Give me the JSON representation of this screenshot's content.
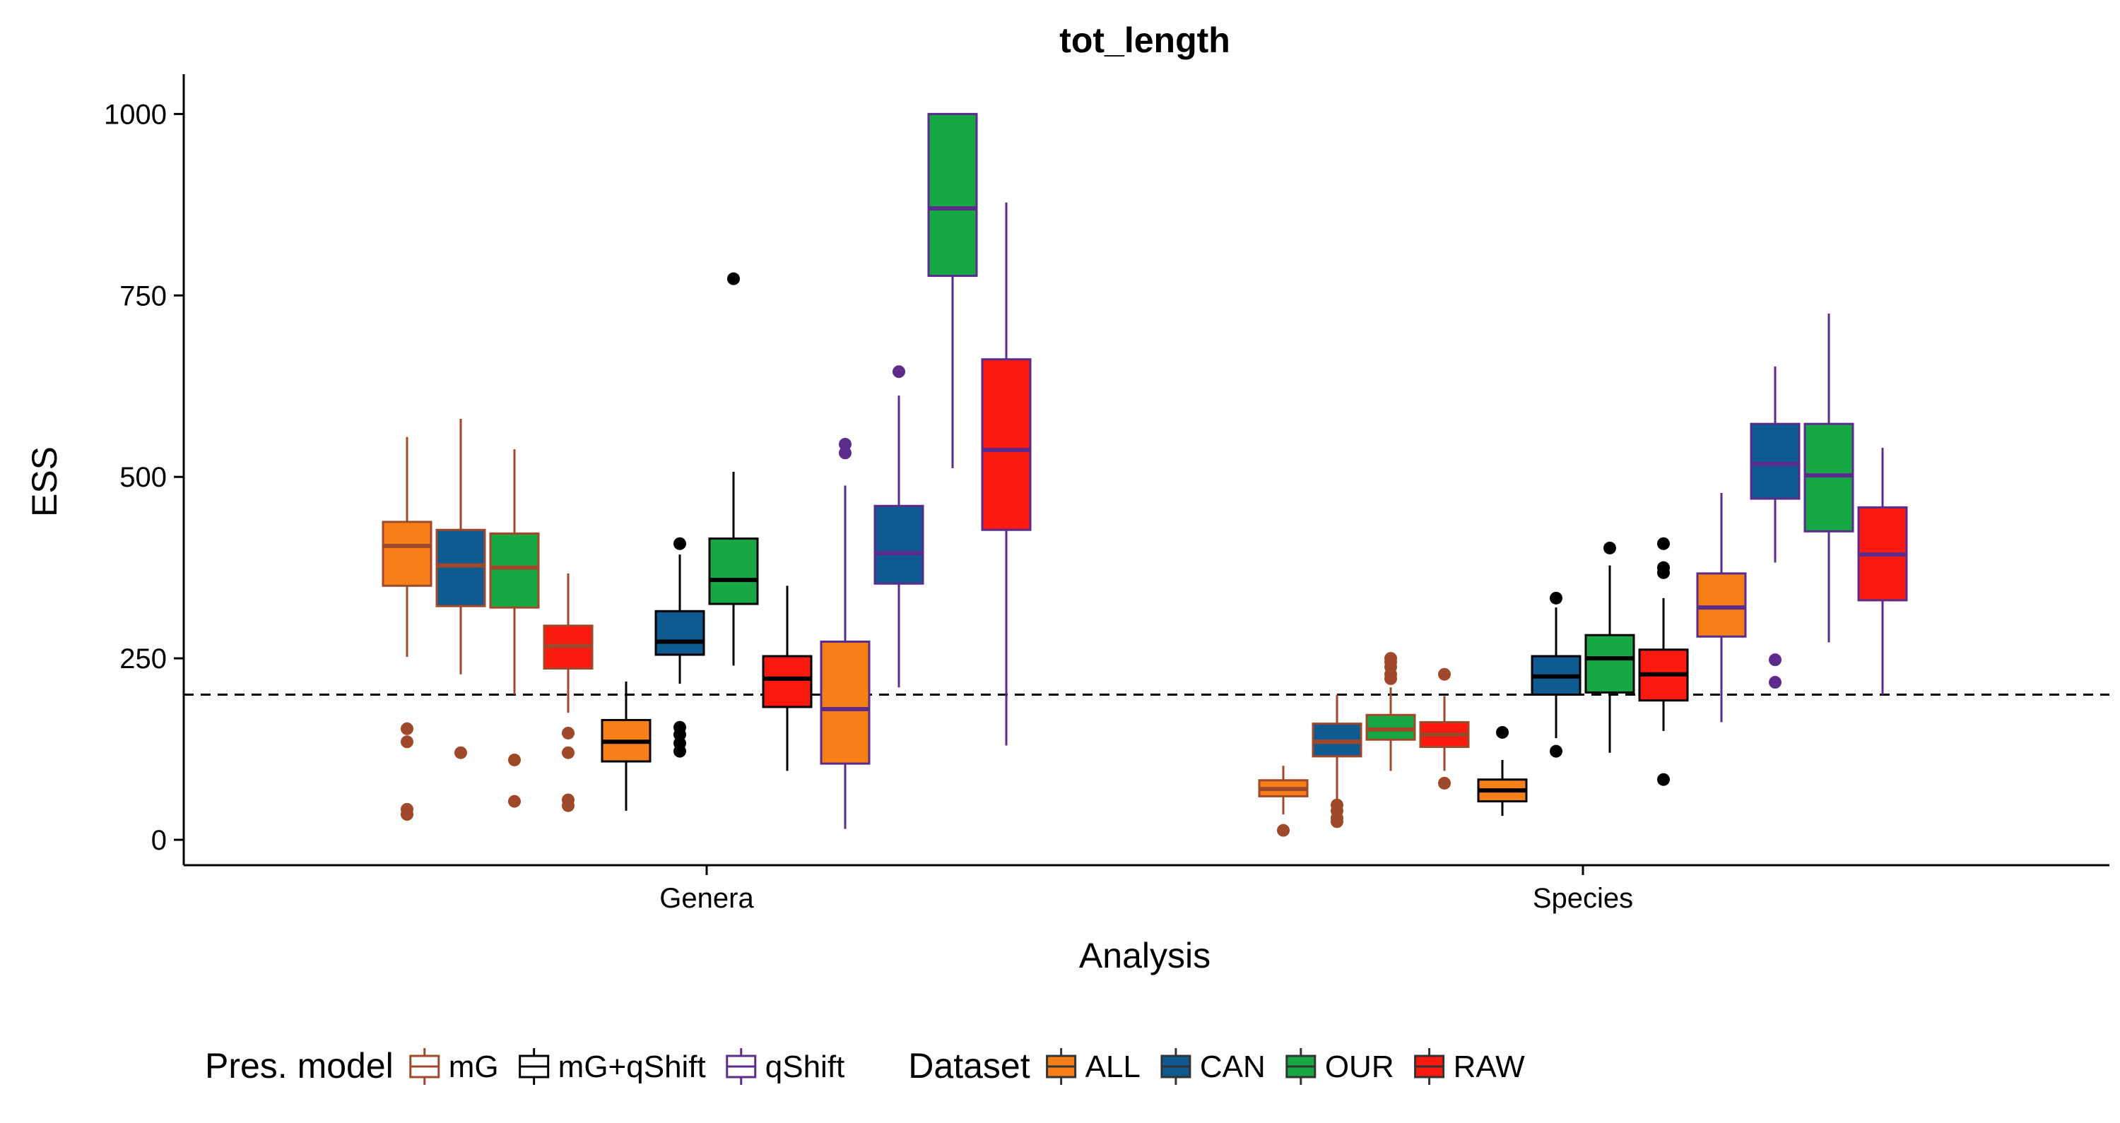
{
  "chart_data": {
    "type": "boxplot",
    "title": "tot_length",
    "xlabel": "Analysis",
    "ylabel": "ESS",
    "ylim": [
      -35,
      1050
    ],
    "yticks": [
      0,
      250,
      500,
      750,
      1000
    ],
    "categories": [
      "Genera",
      "Species"
    ],
    "reference_line": {
      "y": 200,
      "style": "dashed"
    },
    "grid": false,
    "legend_position": "bottom",
    "legends": [
      {
        "title": "Pres. model",
        "entries": [
          {
            "label": "mG",
            "color": "#A0492A"
          },
          {
            "label": "mG+qShift",
            "color": "#000000"
          },
          {
            "label": "qShift",
            "color": "#5B2C8C"
          }
        ]
      },
      {
        "title": "Dataset",
        "entries": [
          {
            "label": "ALL",
            "color": "#F77F18"
          },
          {
            "label": "CAN",
            "color": "#0F5A91"
          },
          {
            "label": "OUR",
            "color": "#17A845"
          },
          {
            "label": "RAW",
            "color": "#FB1A10"
          }
        ]
      }
    ],
    "boxes": [
      {
        "category": "Genera",
        "model": "mG",
        "dataset": "ALL",
        "whisker_low": 252,
        "q1": 350,
        "median": 405,
        "q3": 438,
        "whisker_high": 555,
        "outliers": [
          153,
          135,
          42,
          35
        ]
      },
      {
        "category": "Genera",
        "model": "mG",
        "dataset": "CAN",
        "whisker_low": 228,
        "q1": 322,
        "median": 378,
        "q3": 427,
        "whisker_high": 580,
        "outliers": [
          120
        ]
      },
      {
        "category": "Genera",
        "model": "mG",
        "dataset": "OUR",
        "whisker_low": 200,
        "q1": 320,
        "median": 375,
        "q3": 422,
        "whisker_high": 538,
        "outliers": [
          110,
          53
        ]
      },
      {
        "category": "Genera",
        "model": "mG",
        "dataset": "RAW",
        "whisker_low": 175,
        "q1": 236,
        "median": 267,
        "q3": 295,
        "whisker_high": 367,
        "outliers": [
          147,
          120,
          55,
          47
        ]
      },
      {
        "category": "Genera",
        "model": "mG+qShift",
        "dataset": "ALL",
        "whisker_low": 40,
        "q1": 108,
        "median": 135,
        "q3": 165,
        "whisker_high": 218,
        "outliers": []
      },
      {
        "category": "Genera",
        "model": "mG+qShift",
        "dataset": "CAN",
        "whisker_low": 215,
        "q1": 255,
        "median": 273,
        "q3": 315,
        "whisker_high": 393,
        "outliers": [
          408,
          155,
          145,
          133,
          122
        ]
      },
      {
        "category": "Genera",
        "model": "mG+qShift",
        "dataset": "OUR",
        "whisker_low": 240,
        "q1": 325,
        "median": 358,
        "q3": 415,
        "whisker_high": 507,
        "outliers": [
          773
        ]
      },
      {
        "category": "Genera",
        "model": "mG+qShift",
        "dataset": "RAW",
        "whisker_low": 95,
        "q1": 183,
        "median": 222,
        "q3": 253,
        "whisker_high": 350,
        "outliers": []
      },
      {
        "category": "Genera",
        "model": "qShift",
        "dataset": "ALL",
        "whisker_low": 15,
        "q1": 105,
        "median": 180,
        "q3": 273,
        "whisker_high": 488,
        "outliers": [
          545,
          533
        ]
      },
      {
        "category": "Genera",
        "model": "qShift",
        "dataset": "CAN",
        "whisker_low": 210,
        "q1": 353,
        "median": 395,
        "q3": 460,
        "whisker_high": 612,
        "outliers": [
          645
        ]
      },
      {
        "category": "Genera",
        "model": "qShift",
        "dataset": "OUR",
        "whisker_low": 512,
        "q1": 777,
        "median": 870,
        "q3": 1000,
        "whisker_high": 1000,
        "outliers": []
      },
      {
        "category": "Genera",
        "model": "qShift",
        "dataset": "RAW",
        "whisker_low": 130,
        "q1": 427,
        "median": 537,
        "q3": 662,
        "whisker_high": 878,
        "outliers": []
      },
      {
        "category": "Species",
        "model": "mG",
        "dataset": "ALL",
        "whisker_low": 35,
        "q1": 60,
        "median": 70,
        "q3": 82,
        "whisker_high": 102,
        "outliers": [
          13
        ]
      },
      {
        "category": "Species",
        "model": "mG",
        "dataset": "CAN",
        "whisker_low": 55,
        "q1": 115,
        "median": 135,
        "q3": 160,
        "whisker_high": 200,
        "outliers": [
          48,
          40,
          30,
          25
        ]
      },
      {
        "category": "Species",
        "model": "mG",
        "dataset": "OUR",
        "whisker_low": 95,
        "q1": 138,
        "median": 152,
        "q3": 172,
        "whisker_high": 210,
        "outliers": [
          250,
          245,
          238,
          228,
          222
        ]
      },
      {
        "category": "Species",
        "model": "mG",
        "dataset": "RAW",
        "whisker_low": 95,
        "q1": 128,
        "median": 145,
        "q3": 162,
        "whisker_high": 198,
        "outliers": [
          228,
          78
        ]
      },
      {
        "category": "Species",
        "model": "mG+qShift",
        "dataset": "ALL",
        "whisker_low": 33,
        "q1": 53,
        "median": 68,
        "q3": 83,
        "whisker_high": 110,
        "outliers": [
          148
        ]
      },
      {
        "category": "Species",
        "model": "mG+qShift",
        "dataset": "CAN",
        "whisker_low": 140,
        "q1": 200,
        "median": 225,
        "q3": 253,
        "whisker_high": 320,
        "outliers": [
          333,
          122
        ]
      },
      {
        "category": "Species",
        "model": "mG+qShift",
        "dataset": "OUR",
        "whisker_low": 120,
        "q1": 203,
        "median": 250,
        "q3": 282,
        "whisker_high": 378,
        "outliers": [
          402
        ]
      },
      {
        "category": "Species",
        "model": "mG+qShift",
        "dataset": "RAW",
        "whisker_low": 150,
        "q1": 192,
        "median": 228,
        "q3": 262,
        "whisker_high": 333,
        "outliers": [
          408,
          375,
          368,
          83
        ]
      },
      {
        "category": "Species",
        "model": "qShift",
        "dataset": "ALL",
        "whisker_low": 162,
        "q1": 280,
        "median": 320,
        "q3": 367,
        "whisker_high": 478,
        "outliers": []
      },
      {
        "category": "Species",
        "model": "qShift",
        "dataset": "CAN",
        "whisker_low": 382,
        "q1": 470,
        "median": 518,
        "q3": 573,
        "whisker_high": 652,
        "outliers": [
          248,
          217
        ]
      },
      {
        "category": "Species",
        "model": "qShift",
        "dataset": "OUR",
        "whisker_low": 272,
        "q1": 425,
        "median": 502,
        "q3": 573,
        "whisker_high": 725,
        "outliers": []
      },
      {
        "category": "Species",
        "model": "qShift",
        "dataset": "RAW",
        "whisker_low": 200,
        "q1": 330,
        "median": 393,
        "q3": 458,
        "whisker_high": 540,
        "outliers": []
      }
    ]
  }
}
